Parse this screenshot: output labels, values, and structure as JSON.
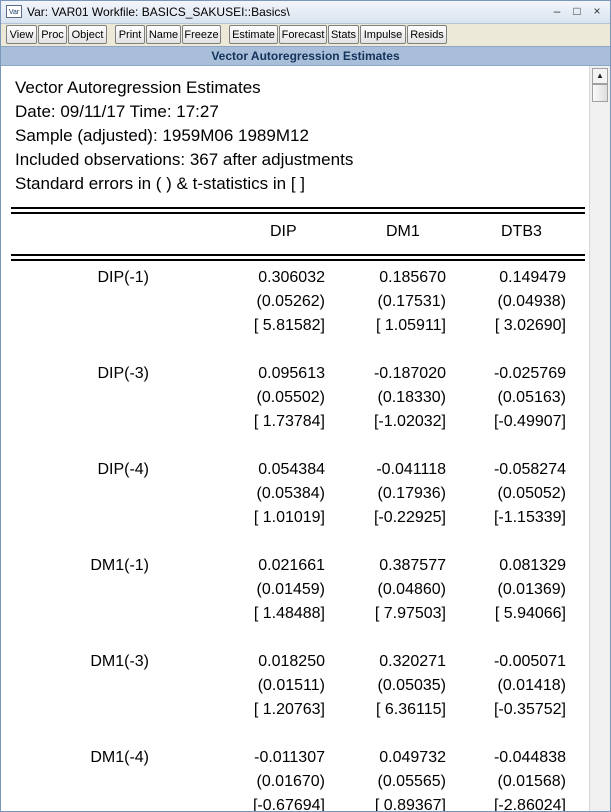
{
  "window": {
    "app_icon": "Var",
    "title": "Var: VAR01   Workfile: BASICS_SAKUSEI::Basics\\",
    "controls": [
      "–",
      "□",
      "×"
    ]
  },
  "toolbar": [
    "View",
    "Proc",
    "Object",
    "Print",
    "Name",
    "Freeze",
    "Estimate",
    "Forecast",
    "Stats",
    "Impulse",
    "Resids"
  ],
  "header_title": "Vector Autoregression Estimates",
  "info_lines": [
    "Vector Autoregression Estimates",
    "Date: 09/11/17   Time: 17:27",
    "Sample (adjusted): 1959M06 1989M12",
    "Included observations: 367 after adjustments",
    "Standard errors in ( ) & t-statistics in [ ]"
  ],
  "columns": [
    "DIP",
    "DM1",
    "DTB3"
  ],
  "rows": [
    {
      "label": "DIP(-1)",
      "coef": [
        "0.306032",
        "0.185670",
        "0.149479"
      ],
      "se": [
        "(0.05262)",
        "(0.17531)",
        "(0.04938)"
      ],
      "t": [
        "[ 5.81582]",
        "[ 1.05911]",
        "[ 3.02690]"
      ]
    },
    {
      "label": "DIP(-3)",
      "coef": [
        "0.095613",
        "-0.187020",
        "-0.025769"
      ],
      "se": [
        "(0.05502)",
        "(0.18330)",
        "(0.05163)"
      ],
      "t": [
        "[ 1.73784]",
        "[-1.02032]",
        "[-0.49907]"
      ]
    },
    {
      "label": "DIP(-4)",
      "coef": [
        "0.054384",
        "-0.041118",
        "-0.058274"
      ],
      "se": [
        "(0.05384)",
        "(0.17936)",
        "(0.05052)"
      ],
      "t": [
        "[ 1.01019]",
        "[-0.22925]",
        "[-1.15339]"
      ]
    },
    {
      "label": "DM1(-1)",
      "coef": [
        "0.021661",
        "0.387577",
        "0.081329"
      ],
      "se": [
        "(0.01459)",
        "(0.04860)",
        "(0.01369)"
      ],
      "t": [
        "[ 1.48488]",
        "[ 7.97503]",
        "[ 5.94066]"
      ]
    },
    {
      "label": "DM1(-3)",
      "coef": [
        "0.018250",
        "0.320271",
        "-0.005071"
      ],
      "se": [
        "(0.01511)",
        "(0.05035)",
        "(0.01418)"
      ],
      "t": [
        "[ 1.20763]",
        "[ 6.36115]",
        "[-0.35752]"
      ]
    },
    {
      "label": "DM1(-4)",
      "coef": [
        "-0.011307",
        "0.049732",
        "-0.044838"
      ],
      "se": [
        "(0.01670)",
        "(0.05565)",
        "(0.01568)"
      ],
      "t": [
        "[-0.67694]",
        "[ 0.89367]",
        "[-2.86024]"
      ]
    }
  ]
}
